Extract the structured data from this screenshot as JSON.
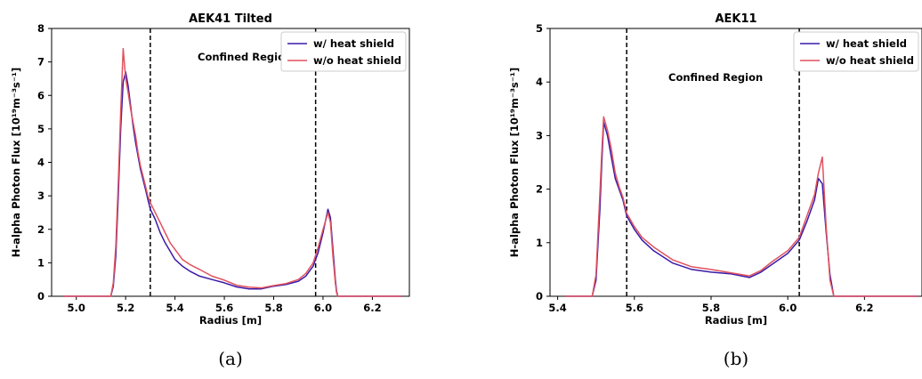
{
  "colors": {
    "with_shield": "#3a1aa8",
    "without_shield": "#e0525e",
    "vline": "#000000"
  },
  "chart_data": [
    {
      "type": "line",
      "title": "AEK41 Tilted",
      "caption": "(a)",
      "xlabel": "Radius [m]",
      "ylabel": "H-alpha Photon Flux [10¹⁹m⁻³s⁻¹]",
      "xlim": [
        4.9,
        6.35
      ],
      "ylim": [
        0,
        8
      ],
      "xticks": [
        5.0,
        5.2,
        5.4,
        5.6,
        5.8,
        6.0,
        6.2
      ],
      "xtick_labels": [
        "5.0",
        "5.2",
        "5.4",
        "5.6",
        "5.8",
        "6.0",
        "6.2"
      ],
      "yticks": [
        0,
        1,
        2,
        3,
        4,
        5,
        6,
        7,
        8
      ],
      "ytick_labels": [
        "0",
        "1",
        "2",
        "3",
        "4",
        "5",
        "6",
        "7",
        "8"
      ],
      "annotation": "Confined Region",
      "vlines": [
        5.3,
        5.97
      ],
      "legend_position": "top-right",
      "series": [
        {
          "name": "w/ heat shield",
          "x": [
            4.95,
            5.14,
            5.15,
            5.16,
            5.17,
            5.18,
            5.19,
            5.2,
            5.21,
            5.22,
            5.23,
            5.24,
            5.25,
            5.26,
            5.27,
            5.28,
            5.29,
            5.3,
            5.32,
            5.34,
            5.36,
            5.38,
            5.4,
            5.43,
            5.46,
            5.5,
            5.55,
            5.6,
            5.65,
            5.7,
            5.75,
            5.8,
            5.85,
            5.9,
            5.93,
            5.96,
            5.98,
            6.0,
            6.02,
            6.03,
            6.04,
            6.05,
            6.055,
            6.06,
            6.32
          ],
          "y": [
            0,
            0,
            0.3,
            1.2,
            3.0,
            5.0,
            6.4,
            6.7,
            6.3,
            5.7,
            5.1,
            4.6,
            4.2,
            3.8,
            3.5,
            3.2,
            2.9,
            2.6,
            2.3,
            1.9,
            1.6,
            1.35,
            1.1,
            0.9,
            0.75,
            0.6,
            0.5,
            0.4,
            0.28,
            0.22,
            0.22,
            0.3,
            0.35,
            0.45,
            0.6,
            0.9,
            1.3,
            1.9,
            2.6,
            2.35,
            1.4,
            0.5,
            0.15,
            0,
            0
          ]
        },
        {
          "name": "w/o heat shield",
          "x": [
            4.95,
            5.14,
            5.15,
            5.16,
            5.17,
            5.18,
            5.19,
            5.2,
            5.21,
            5.22,
            5.23,
            5.24,
            5.25,
            5.26,
            5.27,
            5.28,
            5.29,
            5.3,
            5.32,
            5.34,
            5.36,
            5.38,
            5.4,
            5.43,
            5.46,
            5.5,
            5.55,
            5.6,
            5.65,
            5.7,
            5.75,
            5.8,
            5.85,
            5.9,
            5.93,
            5.96,
            5.98,
            6.0,
            6.02,
            6.03,
            6.04,
            6.05,
            6.055,
            6.06,
            6.32
          ],
          "y": [
            0,
            0,
            0.4,
            1.5,
            3.4,
            5.5,
            7.4,
            6.5,
            6.1,
            5.6,
            5.2,
            4.8,
            4.3,
            3.9,
            3.6,
            3.3,
            3.0,
            2.8,
            2.5,
            2.2,
            1.9,
            1.6,
            1.4,
            1.1,
            0.95,
            0.8,
            0.6,
            0.48,
            0.33,
            0.27,
            0.25,
            0.32,
            0.38,
            0.5,
            0.68,
            1.0,
            1.45,
            2.0,
            2.5,
            2.2,
            1.2,
            0.4,
            0.1,
            0,
            0
          ]
        }
      ]
    },
    {
      "type": "line",
      "title": "AEK11",
      "caption": "(b)",
      "xlabel": "Radius [m]",
      "ylabel": "H-alpha Photon Flux [10¹⁹m⁻³s⁻¹]",
      "xlim": [
        5.38,
        6.35
      ],
      "ylim": [
        0,
        5
      ],
      "xticks": [
        5.4,
        5.6,
        5.8,
        6.0,
        6.2
      ],
      "xtick_labels": [
        "5.4",
        "5.6",
        "5.8",
        "6.0",
        "6.2"
      ],
      "yticks": [
        0,
        1,
        2,
        3,
        4,
        5
      ],
      "ytick_labels": [
        "0",
        "1",
        "2",
        "3",
        "4",
        "5"
      ],
      "annotation": "Confined Region",
      "vlines": [
        5.58,
        6.03
      ],
      "legend_position": "top-right",
      "series": [
        {
          "name": "w/ heat shield",
          "x": [
            5.42,
            5.49,
            5.5,
            5.51,
            5.515,
            5.52,
            5.53,
            5.54,
            5.55,
            5.56,
            5.57,
            5.58,
            5.6,
            5.62,
            5.65,
            5.7,
            5.75,
            5.8,
            5.85,
            5.9,
            5.93,
            5.96,
            6.0,
            6.03,
            6.05,
            6.07,
            6.08,
            6.09,
            6.1,
            6.11,
            6.12,
            6.34
          ],
          "y": [
            0,
            0,
            0.3,
            1.6,
            2.5,
            3.25,
            3.0,
            2.6,
            2.2,
            2.0,
            1.8,
            1.5,
            1.25,
            1.05,
            0.85,
            0.62,
            0.5,
            0.45,
            0.42,
            0.35,
            0.45,
            0.6,
            0.8,
            1.05,
            1.4,
            1.8,
            2.2,
            2.1,
            1.2,
            0.4,
            0,
            0
          ]
        },
        {
          "name": "w/o heat shield",
          "x": [
            5.42,
            5.49,
            5.5,
            5.51,
            5.515,
            5.52,
            5.53,
            5.54,
            5.55,
            5.56,
            5.57,
            5.58,
            5.6,
            5.62,
            5.65,
            5.7,
            5.75,
            5.8,
            5.85,
            5.9,
            5.93,
            5.96,
            6.0,
            6.03,
            6.05,
            6.07,
            6.08,
            6.09,
            6.1,
            6.11,
            6.12,
            6.34
          ],
          "y": [
            0,
            0,
            0.4,
            1.9,
            2.7,
            3.35,
            3.1,
            2.75,
            2.3,
            2.05,
            1.85,
            1.55,
            1.3,
            1.1,
            0.92,
            0.68,
            0.55,
            0.5,
            0.44,
            0.38,
            0.48,
            0.65,
            0.85,
            1.1,
            1.5,
            1.9,
            2.3,
            2.6,
            1.3,
            0.3,
            0,
            0
          ]
        }
      ]
    }
  ]
}
